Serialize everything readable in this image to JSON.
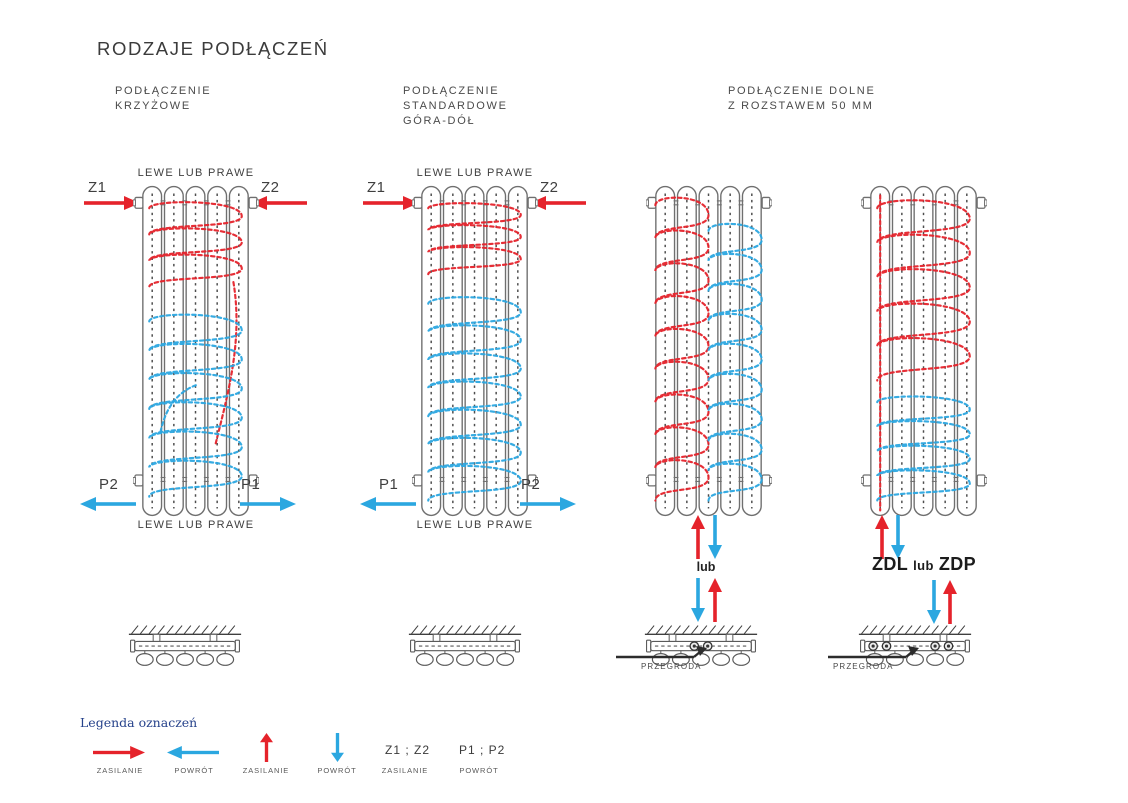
{
  "title": "RODZAJE PODŁĄCZEŃ",
  "colors": {
    "supply_red": "#e5232b",
    "return_blue": "#2ba7e0",
    "outline_gray": "#6f6f6f",
    "text_dark": "#3b3b3b",
    "legend_title_blue": "#26428b"
  },
  "sections": {
    "s1": {
      "line1": "PODŁĄCZENIE",
      "line2": "KRZYŻOWE"
    },
    "s2": {
      "line1": "PODŁĄCZENIE",
      "line2": "STANDARDOWE",
      "line3": "GÓRA-DÓŁ"
    },
    "s3": {
      "line1": "PODŁĄCZENIE DOLNE",
      "line2": "Z ROZSTAWEM 50 MM"
    }
  },
  "diagram1": {
    "top_label": "LEWE LUB PRAWE",
    "bottom_label": "LEWE LUB PRAWE",
    "supply_left": "Z1",
    "supply_right": "Z2",
    "return_left": "P2",
    "return_right": "P1"
  },
  "diagram2": {
    "top_label": "LEWE LUB PRAWE",
    "bottom_label": "LEWE LUB PRAWE",
    "supply_left": "Z1",
    "supply_right": "Z2",
    "return_left": "P1",
    "return_right": "P2"
  },
  "diagram3": {
    "or_label": "lub",
    "partition_label": "PRZEGRODA"
  },
  "diagram4": {
    "zdl": "ZDL",
    "or_label": "lub",
    "zdp": "ZDP",
    "partition_label": "PRZEGRODA"
  },
  "legend": {
    "title": "Legenda oznaczeń",
    "items": [
      {
        "icon": "arrow-right-supply-icon",
        "label": "ZASILANIE"
      },
      {
        "icon": "arrow-left-return-icon",
        "label": "POWRÓT"
      },
      {
        "icon": "arrow-up-supply-icon",
        "label": "ZASILANIE"
      },
      {
        "icon": "arrow-down-return-icon",
        "label": "POWRÓT"
      },
      {
        "symbol": "Z1 ; Z2",
        "label": "ZASILANIE"
      },
      {
        "symbol": "P1 ; P2",
        "label": "POWRÓT"
      }
    ]
  }
}
